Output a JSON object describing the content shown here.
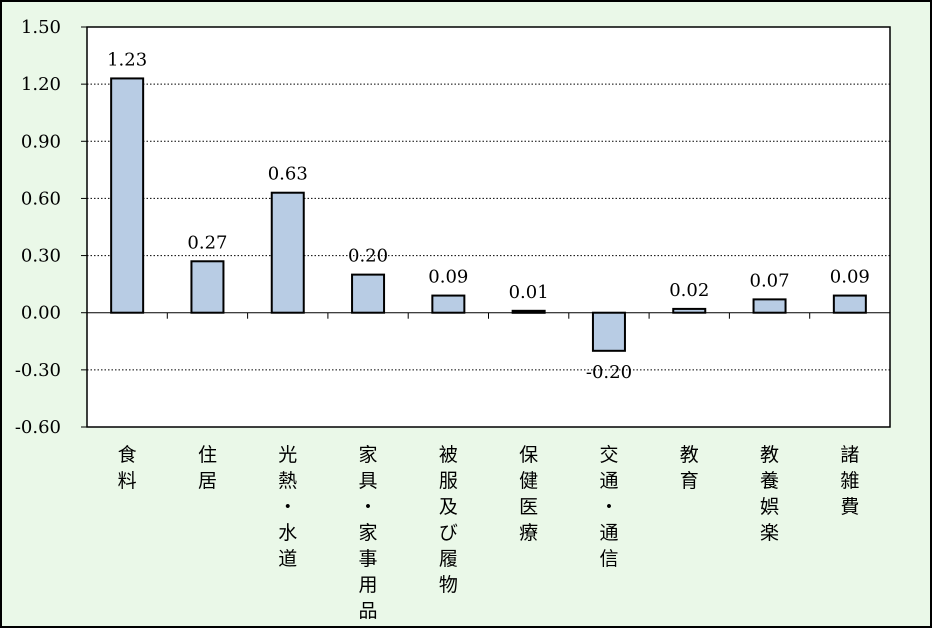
{
  "colors": {
    "background": "#eaf8e8",
    "plot_background": "#ffffff",
    "bar_fill": "#b8cce4",
    "bar_stroke": "#000000",
    "gridline": "#000000"
  },
  "chart_data": {
    "type": "bar",
    "categories": [
      "食料",
      "住居",
      "光熱・水道",
      "家具・家事用品",
      "被服及び履物",
      "保健医療",
      "交通・通信",
      "教育",
      "教養娯楽",
      "諸雑費"
    ],
    "values": [
      1.23,
      0.27,
      0.63,
      0.2,
      0.09,
      0.01,
      -0.2,
      0.02,
      0.07,
      0.09
    ],
    "value_labels": [
      "1.23",
      "0.27",
      "0.63",
      "0.20",
      "0.09",
      "0.01",
      "-0.20",
      "0.02",
      "0.07",
      "0.09"
    ],
    "y_ticks": [
      1.5,
      1.2,
      0.9,
      0.6,
      0.3,
      0.0,
      -0.3,
      -0.6
    ],
    "y_tick_labels": [
      "1.50",
      "1.20",
      "0.90",
      "0.60",
      "0.30",
      "0.00",
      "-0.30",
      "-0.60"
    ],
    "ylim": [
      -0.6,
      1.5
    ],
    "grid": "horizontal-dotted",
    "title": "",
    "xlabel": "",
    "ylabel": ""
  }
}
